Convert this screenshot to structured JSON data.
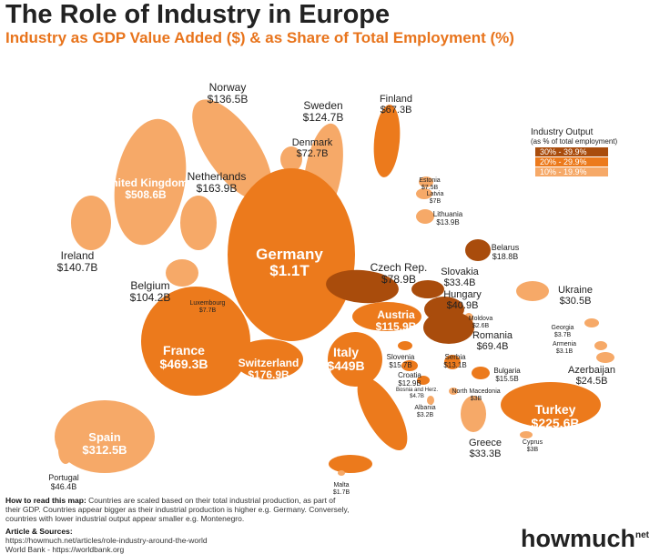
{
  "header": {
    "title": "The Role of Industry in Europe",
    "subtitle": "Industry as GDP Value Added ($) & as Share of Total Employment (%)"
  },
  "legend": {
    "title": "Industry Output",
    "subtitle": "(as % of total employment)",
    "items": [
      {
        "label": "30% - 39.9%",
        "color": "#a94c0c"
      },
      {
        "label": "20% - 29.9%",
        "color": "#ec7a1c"
      },
      {
        "label": "10% - 19.9%",
        "color": "#f6a968"
      }
    ]
  },
  "countries": [
    {
      "name": "Norway",
      "value": "$136.5B",
      "band": 2
    },
    {
      "name": "Sweden",
      "value": "$124.7B",
      "band": 2
    },
    {
      "name": "Finland",
      "value": "$67.3B",
      "band": 1
    },
    {
      "name": "Denmark",
      "value": "$72.7B",
      "band": 2
    },
    {
      "name": "United Kingdom",
      "value": "$508.6B",
      "band": 2
    },
    {
      "name": "Netherlands",
      "value": "$163.9B",
      "band": 2
    },
    {
      "name": "Ireland",
      "value": "$140.7B",
      "band": 2
    },
    {
      "name": "Belgium",
      "value": "$104.2B",
      "band": 2
    },
    {
      "name": "Luxembourg",
      "value": "$7.7B",
      "band": 2
    },
    {
      "name": "Germany",
      "value": "$1.1T",
      "band": 1
    },
    {
      "name": "Czech Rep.",
      "value": "$78.9B",
      "band": 0
    },
    {
      "name": "Slovakia",
      "value": "$33.4B",
      "band": 0
    },
    {
      "name": "Hungary",
      "value": "$40.9B",
      "band": 0
    },
    {
      "name": "Austria",
      "value": "$115.9B",
      "band": 1
    },
    {
      "name": "Estonia",
      "value": "$7.5B",
      "band": 2
    },
    {
      "name": "Latvia",
      "value": "$7B",
      "band": 2
    },
    {
      "name": "Lithuania",
      "value": "$13.9B",
      "band": 2
    },
    {
      "name": "Belarus",
      "value": "$18.8B",
      "band": 0
    },
    {
      "name": "Ukraine",
      "value": "$30.5B",
      "band": 2
    },
    {
      "name": "Moldova",
      "value": "$2.6B",
      "band": 2
    },
    {
      "name": "Romania",
      "value": "$69.4B",
      "band": 0
    },
    {
      "name": "France",
      "value": "$469.3B",
      "band": 1
    },
    {
      "name": "Switzerland",
      "value": "$176.9B",
      "band": 1
    },
    {
      "name": "Italy",
      "value": "$449B",
      "band": 1
    },
    {
      "name": "Slovenia",
      "value": "$15.7B",
      "band": 1
    },
    {
      "name": "Serbia",
      "value": "$13.1B",
      "band": 1
    },
    {
      "name": "Croatia",
      "value": "$12.9B",
      "band": 1
    },
    {
      "name": "Bulgaria",
      "value": "$15.5B",
      "band": 1
    },
    {
      "name": "Bosnia and Herz.",
      "value": "$4.7B",
      "band": 1
    },
    {
      "name": "Albania",
      "value": "$3.2B",
      "band": 2
    },
    {
      "name": "North Macedonia",
      "value": "$3B",
      "band": 2
    },
    {
      "name": "Georgia",
      "value": "$3.7B",
      "band": 2
    },
    {
      "name": "Armenia",
      "value": "$3.1B",
      "band": 2
    },
    {
      "name": "Azerbaijan",
      "value": "$24.5B",
      "band": 2
    },
    {
      "name": "Turkey",
      "value": "$225.6B",
      "band": 1
    },
    {
      "name": "Spain",
      "value": "$312.5B",
      "band": 2
    },
    {
      "name": "Portugal",
      "value": "$46.4B",
      "band": 2
    },
    {
      "name": "Greece",
      "value": "$33.3B",
      "band": 2
    },
    {
      "name": "Cyprus",
      "value": "$3B",
      "band": 2
    },
    {
      "name": "Malta",
      "value": "$1.7B",
      "band": 2
    }
  ],
  "footer": {
    "how_label": "How to read this map:",
    "how_text": "Countries are scaled based on their total industrial production, as part of their GDP. Countries appear bigger as their industrial production is higher e.g. Germany. Conversely, countries with lower industrial output appear smaller e.g. Montenegro.",
    "sources_label": "Article & Sources:",
    "sources": [
      "https://howmuch.net/articles/role-industry-around-the-world",
      "World Bank - https://worldbank.org"
    ],
    "logo": "howmuch",
    "logo_suffix": "net"
  }
}
